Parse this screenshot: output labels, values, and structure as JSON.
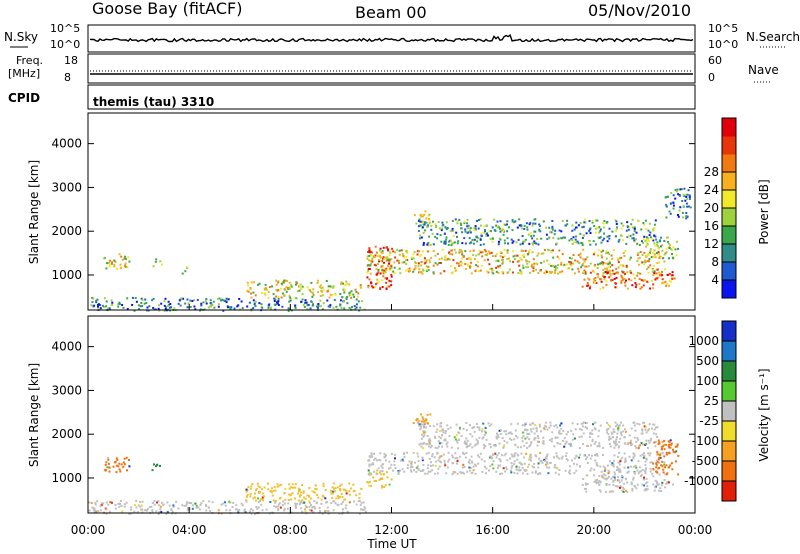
{
  "header": {
    "station": "Goose Bay (fitACF)",
    "beam": "Beam 00",
    "date": "05/Nov/2010"
  },
  "noise_panel": {
    "left_label": "N.Sky",
    "right_label": "N.Search",
    "left_ticks": [
      "10^5",
      "10^0"
    ],
    "right_ticks": [
      "10^5",
      "10^0"
    ]
  },
  "freq_panel": {
    "left_label_line1": "Freq.",
    "left_label_line2": "[MHz]",
    "right_label": "Nave",
    "left_ticks": [
      "18",
      "8"
    ],
    "right_ticks": [
      "60",
      "0"
    ]
  },
  "cpid_panel": {
    "label": "CPID",
    "value": "themis (tau) 3310"
  },
  "chart_data": [
    {
      "type": "heatmap",
      "name": "power",
      "ylabel": "Slant Range [km]",
      "y_ticks": [
        1000,
        2000,
        3000,
        4000
      ],
      "ylim": [
        200,
        4700
      ],
      "xlim_hours": [
        0,
        24
      ],
      "colorbar": {
        "label": "Power [dB]",
        "tick_labels": [
          "4",
          "8",
          "12",
          "16",
          "20",
          "24",
          "28"
        ],
        "colors": [
          "#0a14ee",
          "#1e5ad2",
          "#2f8c86",
          "#3aa84a",
          "#9ed23c",
          "#f2e92a",
          "#f8b01e",
          "#f27810",
          "#e8360a",
          "#e0000a"
        ]
      },
      "echo_regions": [
        {
          "t0": 0.6,
          "t1": 1.6,
          "r0": 1150,
          "r1": 1500,
          "level": 0.55
        },
        {
          "t0": 2.5,
          "t1": 2.9,
          "r0": 1200,
          "r1": 1400,
          "level": 0.5
        },
        {
          "t0": 3.6,
          "t1": 3.9,
          "r0": 1050,
          "r1": 1250,
          "level": 0.45
        },
        {
          "t0": 0.0,
          "t1": 11.0,
          "r0": 200,
          "r1": 500,
          "level": 0.25
        },
        {
          "t0": 6.2,
          "t1": 10.8,
          "r0": 500,
          "r1": 900,
          "level": 0.55
        },
        {
          "t0": 11.0,
          "t1": 12.0,
          "r0": 700,
          "r1": 1700,
          "level": 0.8
        },
        {
          "t0": 11.0,
          "t1": 22.8,
          "r0": 1050,
          "r1": 1600,
          "level": 0.6
        },
        {
          "t0": 12.8,
          "t1": 13.5,
          "r0": 2150,
          "r1": 2500,
          "level": 0.6
        },
        {
          "t0": 13.0,
          "t1": 22.5,
          "r0": 1700,
          "r1": 2300,
          "level": 0.3
        },
        {
          "t0": 19.5,
          "t1": 23.2,
          "r0": 700,
          "r1": 1100,
          "level": 0.75
        },
        {
          "t0": 22.0,
          "t1": 23.3,
          "r0": 1400,
          "r1": 1900,
          "level": 0.45
        },
        {
          "t0": 22.8,
          "t1": 23.8,
          "r0": 2300,
          "r1": 3000,
          "level": 0.25
        }
      ]
    },
    {
      "type": "heatmap",
      "name": "velocity",
      "ylabel": "Slant Range [km]",
      "xlabel": "Time UT",
      "x_tick_labels": [
        "00:00",
        "04:00",
        "08:00",
        "12:00",
        "16:00",
        "20:00",
        "00:00"
      ],
      "x_tick_hours": [
        0,
        4,
        8,
        12,
        16,
        20,
        24
      ],
      "y_ticks": [
        1000,
        2000,
        3000,
        4000
      ],
      "ylim": [
        200,
        4700
      ],
      "xlim_hours": [
        0,
        24
      ],
      "colorbar": {
        "label": "Velocity [m s⁻¹]",
        "tick_labels": [
          "1000",
          "500",
          "100",
          "25",
          "-25",
          "-100",
          "-500",
          "-1000"
        ],
        "colors": [
          "#1430c8",
          "#1e78c8",
          "#2a8a3c",
          "#56c830",
          "#c0c0c0",
          "#f0dc2a",
          "#f5a020",
          "#f07010",
          "#e02008"
        ]
      },
      "echo_regions": [
        {
          "t0": 0.6,
          "t1": 1.6,
          "r0": 1150,
          "r1": 1500,
          "color": "#f07010"
        },
        {
          "t0": 2.5,
          "t1": 2.9,
          "r0": 1200,
          "r1": 1400,
          "color": "#2a8a3c"
        },
        {
          "t0": 0.0,
          "t1": 11.0,
          "r0": 200,
          "r1": 500,
          "color": "#c0c0c0"
        },
        {
          "t0": 6.2,
          "t1": 10.8,
          "r0": 500,
          "r1": 900,
          "color": "#f0c030"
        },
        {
          "t0": 11.0,
          "t1": 12.0,
          "r0": 800,
          "r1": 1200,
          "color": "#f0c030"
        },
        {
          "t0": 11.0,
          "t1": 22.8,
          "r0": 1100,
          "r1": 1600,
          "color": "#c0c0c0"
        },
        {
          "t0": 12.8,
          "t1": 13.5,
          "r0": 2150,
          "r1": 2500,
          "color": "#f0a020"
        },
        {
          "t0": 13.0,
          "t1": 22.5,
          "r0": 1700,
          "r1": 2300,
          "color": "#c0c0c0"
        },
        {
          "t0": 19.5,
          "t1": 23.2,
          "r0": 700,
          "r1": 1100,
          "color": "#c0c0c0"
        },
        {
          "t0": 22.3,
          "t1": 23.3,
          "r0": 1100,
          "r1": 1900,
          "color": "#f07010"
        }
      ]
    }
  ]
}
